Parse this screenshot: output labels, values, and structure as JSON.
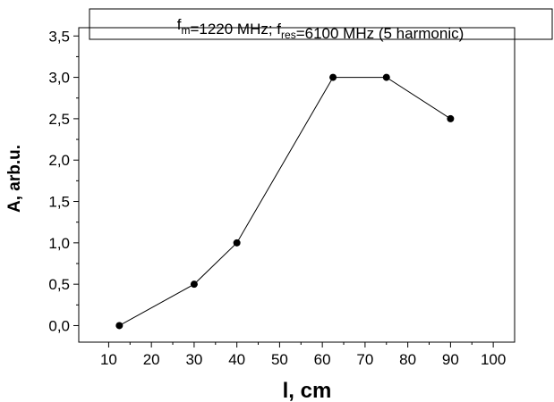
{
  "chart_data": {
    "type": "line",
    "title": {
      "parts": [
        {
          "text": "f",
          "sub": "m"
        },
        {
          "text": "=1220 MHz; f",
          "sub": "res"
        },
        {
          "text": "=6100 MHz (5 harmonic)",
          "sub": ""
        }
      ]
    },
    "xlabel": "l, cm",
    "ylabel": "A, arb.u.",
    "xlim": [
      3,
      105
    ],
    "ylim": [
      -0.2,
      3.6
    ],
    "x_ticks": [
      10,
      20,
      30,
      40,
      50,
      60,
      70,
      80,
      90,
      100
    ],
    "x_tick_labels": [
      "10",
      "20",
      "30",
      "40",
      "50",
      "60",
      "70",
      "80",
      "90",
      "100"
    ],
    "y_ticks": [
      0,
      0.5,
      1.0,
      1.5,
      2.0,
      2.5,
      3.0,
      3.5
    ],
    "y_tick_labels": [
      "0,0",
      "0,5",
      "1,0",
      "1,5",
      "2,0",
      "2,5",
      "3,0",
      "3,5"
    ],
    "x": [
      12.5,
      30,
      40,
      62.5,
      75,
      90
    ],
    "y": [
      0.0,
      0.5,
      1.0,
      3.0,
      3.0,
      2.5
    ],
    "grid": false,
    "line_color": "#000000",
    "marker": "filled-circle"
  }
}
